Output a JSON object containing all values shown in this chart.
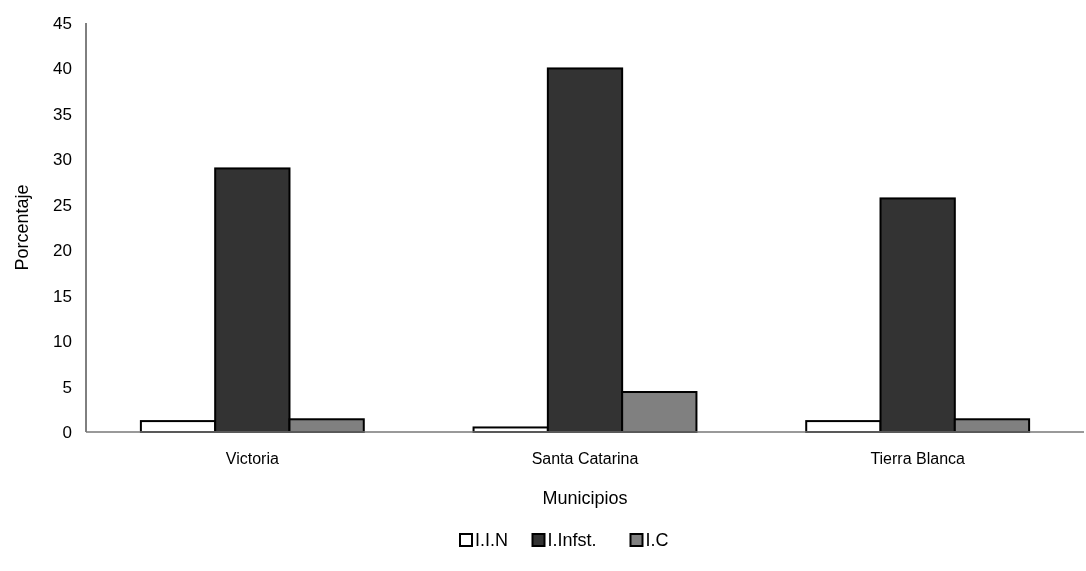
{
  "chart_data": {
    "type": "bar",
    "xlabel": "Municipios",
    "ylabel": "Porcentaje",
    "categories": [
      "Victoria",
      "Santa Catarina",
      "Tierra Blanca"
    ],
    "series": [
      {
        "name": "I.I.N",
        "color": "#ffffff",
        "values": [
          1.2,
          0.5,
          1.2
        ]
      },
      {
        "name": "I.Infst.",
        "color": "#333333",
        "values": [
          29,
          40,
          25.7
        ]
      },
      {
        "name": "I.C",
        "color": "#808080",
        "values": [
          1.4,
          4.4,
          1.4
        ]
      }
    ],
    "ylim": [
      0,
      45
    ],
    "yticks": [
      0,
      5,
      10,
      15,
      20,
      25,
      30,
      35,
      40,
      45
    ],
    "grid": false,
    "legend": "bottom"
  }
}
